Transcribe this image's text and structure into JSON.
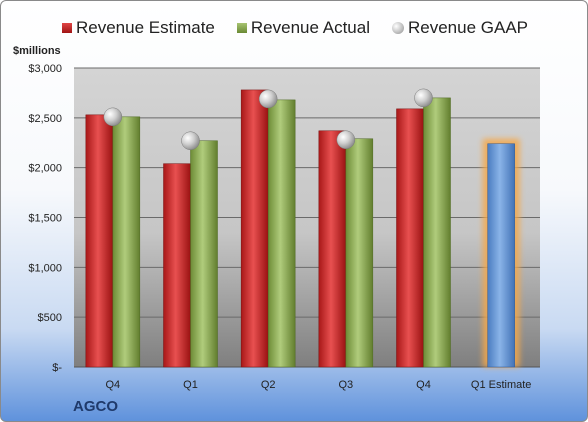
{
  "company": "AGCO",
  "unit_label": "$millions",
  "colors": {
    "estimate": "#c42a2a",
    "actual": "#8aa854",
    "gaap": "#b8b8b8",
    "forecast": "#6a9bd6",
    "forecast_glow": "#f5a84a"
  },
  "chart_data": {
    "type": "bar",
    "title": "",
    "xlabel": "",
    "ylabel": "$millions",
    "ylim": [
      0,
      3000
    ],
    "y_ticks": [
      0,
      500,
      1000,
      1500,
      2000,
      2500,
      3000
    ],
    "y_tick_labels": [
      "$-",
      "$500",
      "$1,000",
      "$1,500",
      "$2,000",
      "$2,500",
      "$3,000"
    ],
    "categories": [
      "Q4",
      "Q1",
      "Q2",
      "Q3",
      "Q4",
      "Q1 Estimate"
    ],
    "series": [
      {
        "name": "Revenue Estimate",
        "values": [
          2530,
          2040,
          2780,
          2370,
          2590,
          null
        ]
      },
      {
        "name": "Revenue Actual",
        "values": [
          2510,
          2270,
          2680,
          2290,
          2700,
          null
        ]
      },
      {
        "name": "Revenue GAAP",
        "values": [
          2510,
          2270,
          2690,
          2280,
          2700,
          null
        ]
      }
    ],
    "forecast": {
      "category": "Q1 Estimate",
      "value": 2240
    },
    "grid": true,
    "legend_position": "top"
  }
}
